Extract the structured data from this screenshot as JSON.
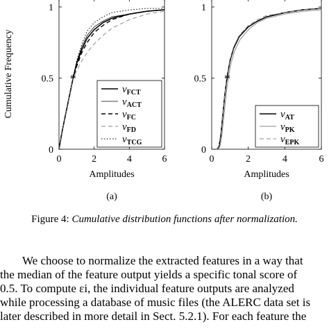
{
  "chart_data": [
    {
      "type": "line",
      "panel_label": "(a)",
      "xlabel": "Amplitudes",
      "ylabel": "Cumulative Frequency",
      "xlim": [
        0,
        6
      ],
      "ylim": [
        0,
        1
      ],
      "x_ticks": [
        "0",
        "2",
        "4",
        "6"
      ],
      "y_ticks": [
        "0",
        "0.5",
        "1"
      ],
      "median_marker": {
        "x": 0.8,
        "y": 0.5
      },
      "legend_position": "lower-right",
      "series": [
        {
          "name": "vFCT",
          "legend_main": "v",
          "legend_sub": "FCT",
          "style": "solid-thick",
          "points": [
            [
              0.0,
              0.0
            ],
            [
              0.1,
              0.07
            ],
            [
              0.2,
              0.14
            ],
            [
              0.3,
              0.2
            ],
            [
              0.5,
              0.32
            ],
            [
              0.8,
              0.5
            ],
            [
              1.0,
              0.6
            ],
            [
              1.3,
              0.7
            ],
            [
              1.6,
              0.78
            ],
            [
              2.0,
              0.84
            ],
            [
              2.5,
              0.89
            ],
            [
              3.0,
              0.92
            ],
            [
              4.0,
              0.95
            ],
            [
              5.0,
              0.97
            ],
            [
              6.0,
              0.98
            ]
          ]
        },
        {
          "name": "vACT",
          "legend_main": "v",
          "legend_sub": "ACT",
          "style": "solid-thin",
          "points": [
            [
              0.0,
              0.0
            ],
            [
              0.1,
              0.07
            ],
            [
              0.2,
              0.14
            ],
            [
              0.3,
              0.2
            ],
            [
              0.5,
              0.32
            ],
            [
              0.8,
              0.5
            ],
            [
              1.0,
              0.61
            ],
            [
              1.3,
              0.72
            ],
            [
              1.6,
              0.8
            ],
            [
              2.0,
              0.86
            ],
            [
              2.5,
              0.9
            ],
            [
              3.0,
              0.93
            ],
            [
              4.0,
              0.95
            ],
            [
              5.0,
              0.97
            ],
            [
              6.0,
              0.98
            ]
          ]
        },
        {
          "name": "vFC",
          "legend_main": "v",
          "legend_sub": "FC",
          "style": "dashed-thick",
          "points": [
            [
              0.0,
              0.0
            ],
            [
              0.1,
              0.07
            ],
            [
              0.2,
              0.14
            ],
            [
              0.3,
              0.2
            ],
            [
              0.5,
              0.32
            ],
            [
              0.8,
              0.5
            ],
            [
              1.0,
              0.58
            ],
            [
              1.3,
              0.68
            ],
            [
              1.6,
              0.75
            ],
            [
              2.0,
              0.82
            ],
            [
              2.5,
              0.87
            ],
            [
              3.0,
              0.91
            ],
            [
              4.0,
              0.95
            ],
            [
              5.0,
              0.97
            ],
            [
              6.0,
              0.98
            ]
          ]
        },
        {
          "name": "vFD",
          "legend_main": "v",
          "legend_sub": "FD",
          "style": "dashed-gray",
          "points": [
            [
              0.0,
              0.0
            ],
            [
              0.1,
              0.07
            ],
            [
              0.2,
              0.14
            ],
            [
              0.3,
              0.2
            ],
            [
              0.5,
              0.32
            ],
            [
              0.8,
              0.5
            ],
            [
              1.0,
              0.55
            ],
            [
              1.3,
              0.62
            ],
            [
              1.6,
              0.68
            ],
            [
              2.0,
              0.74
            ],
            [
              2.5,
              0.8
            ],
            [
              3.0,
              0.85
            ],
            [
              4.0,
              0.91
            ],
            [
              5.0,
              0.95
            ],
            [
              6.0,
              0.97
            ]
          ]
        },
        {
          "name": "vTCG",
          "legend_main": "v",
          "legend_sub": "TCG",
          "style": "dotted",
          "points": [
            [
              0.0,
              0.0
            ],
            [
              0.1,
              0.07
            ],
            [
              0.2,
              0.14
            ],
            [
              0.3,
              0.2
            ],
            [
              0.5,
              0.32
            ],
            [
              0.8,
              0.5
            ],
            [
              1.0,
              0.62
            ],
            [
              1.3,
              0.74
            ],
            [
              1.6,
              0.83
            ],
            [
              2.0,
              0.89
            ],
            [
              2.5,
              0.93
            ],
            [
              3.0,
              0.96
            ],
            [
              4.0,
              0.98
            ],
            [
              5.0,
              0.99
            ],
            [
              6.0,
              0.99
            ]
          ]
        }
      ]
    },
    {
      "type": "line",
      "panel_label": "(b)",
      "xlabel": "Amplitudes",
      "ylabel": "",
      "xlim": [
        0,
        6
      ],
      "ylim": [
        0,
        1
      ],
      "x_ticks": [
        "0",
        "2",
        "4",
        "6"
      ],
      "y_ticks": [
        "0",
        "0.5",
        "1"
      ],
      "median_marker": {
        "x": 0.85,
        "y": 0.5
      },
      "legend_position": "lower-right",
      "series": [
        {
          "name": "vAT",
          "legend_main": "v",
          "legend_sub": "AT",
          "style": "solid-thick",
          "points": [
            [
              0.0,
              0.0
            ],
            [
              0.3,
              0.0
            ],
            [
              0.4,
              0.02
            ],
            [
              0.5,
              0.1
            ],
            [
              0.6,
              0.23
            ],
            [
              0.7,
              0.36
            ],
            [
              0.8,
              0.47
            ],
            [
              0.9,
              0.55
            ],
            [
              1.0,
              0.62
            ],
            [
              1.2,
              0.71
            ],
            [
              1.5,
              0.79
            ],
            [
              2.0,
              0.86
            ],
            [
              2.5,
              0.9
            ],
            [
              3.0,
              0.93
            ],
            [
              4.0,
              0.96
            ],
            [
              5.0,
              0.98
            ],
            [
              6.0,
              0.99
            ]
          ]
        },
        {
          "name": "vPK",
          "legend_main": "v",
          "legend_sub": "PK",
          "style": "solid-gray",
          "points": [
            [
              0.0,
              0.0
            ],
            [
              0.35,
              0.0
            ],
            [
              0.45,
              0.02
            ],
            [
              0.55,
              0.09
            ],
            [
              0.65,
              0.21
            ],
            [
              0.75,
              0.34
            ],
            [
              0.85,
              0.45
            ],
            [
              0.95,
              0.53
            ],
            [
              1.05,
              0.6
            ],
            [
              1.25,
              0.69
            ],
            [
              1.55,
              0.77
            ],
            [
              2.0,
              0.84
            ],
            [
              2.5,
              0.89
            ],
            [
              3.0,
              0.92
            ],
            [
              4.0,
              0.95
            ],
            [
              5.0,
              0.97
            ],
            [
              6.0,
              0.98
            ]
          ]
        },
        {
          "name": "vEPK",
          "legend_main": "v",
          "legend_sub": "EPK",
          "style": "dashed-gray",
          "points": [
            [
              0.0,
              0.0
            ],
            [
              0.3,
              0.0
            ],
            [
              0.4,
              0.03
            ],
            [
              0.5,
              0.11
            ],
            [
              0.6,
              0.24
            ],
            [
              0.7,
              0.37
            ],
            [
              0.8,
              0.48
            ],
            [
              0.9,
              0.56
            ],
            [
              1.0,
              0.63
            ],
            [
              1.2,
              0.72
            ],
            [
              1.5,
              0.8
            ],
            [
              2.0,
              0.87
            ],
            [
              2.5,
              0.91
            ],
            [
              3.0,
              0.94
            ],
            [
              4.0,
              0.96
            ],
            [
              5.0,
              0.98
            ],
            [
              6.0,
              0.99
            ]
          ]
        }
      ]
    }
  ],
  "caption": {
    "label": "Figure 4:",
    "text": "Cumulative distribution functions after normalization."
  },
  "paragraph": {
    "lines": [
      "We choose to normalize the extracted features in a way that",
      "the median of the feature output yields a specific tonal score of",
      "0.5.  To compute εi, the individual feature outputs are analyzed",
      "while processing a database of music files (the ALERC data set is",
      "later described in more detail in Sect. 5.2.1).  For each feature the"
    ]
  }
}
